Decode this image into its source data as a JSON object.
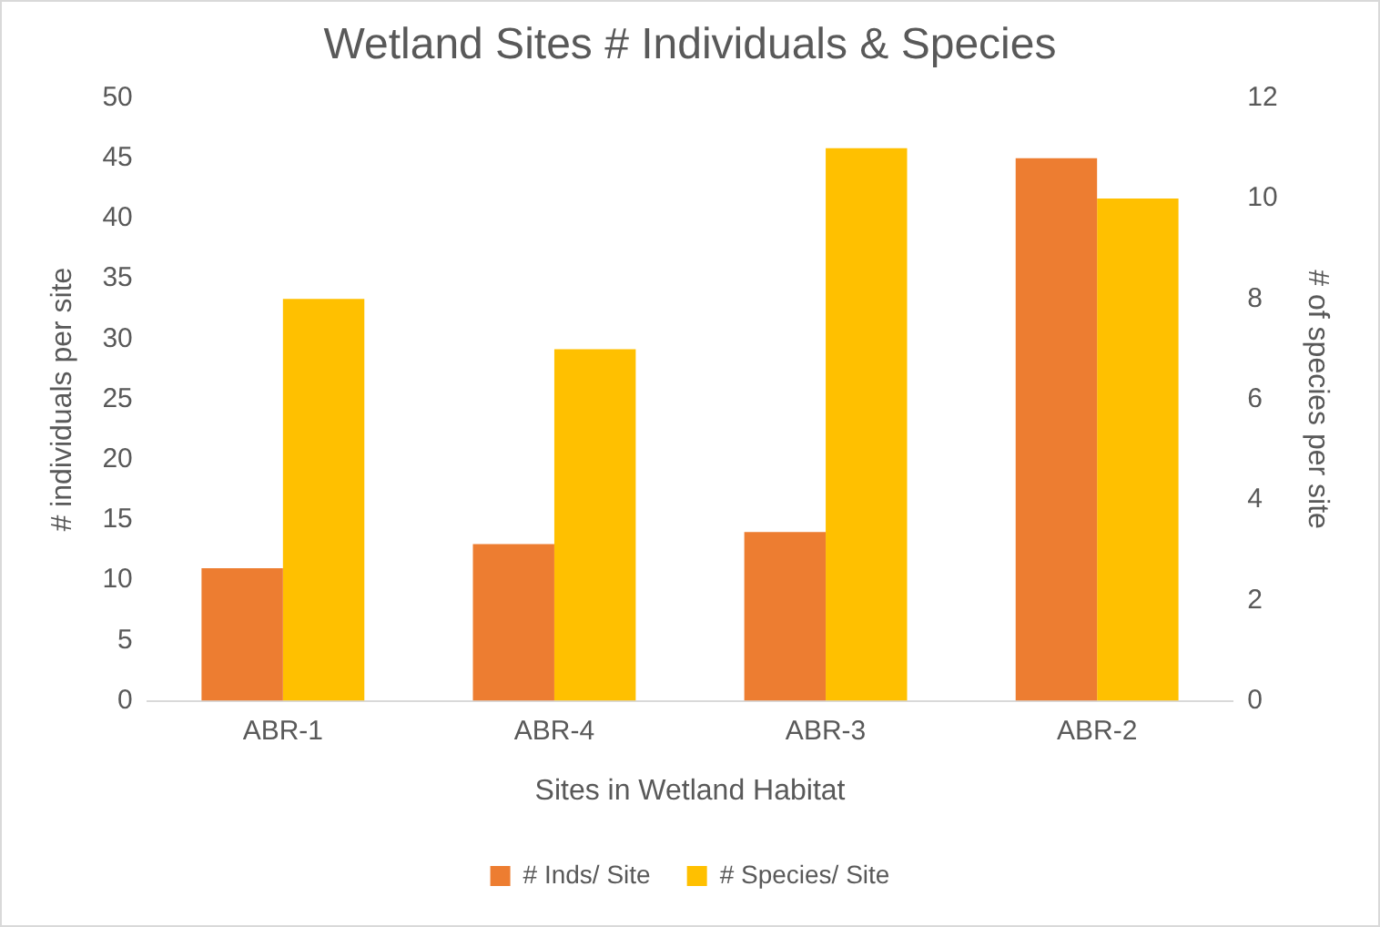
{
  "chart_data": {
    "type": "bar",
    "title": "Wetland Sites # Individuals & Species",
    "xlabel": "Sites in Wetland Habitat",
    "ylabel": "# individuals per site",
    "y2label": "# of species per site",
    "categories": [
      "ABR-1",
      "ABR-4",
      "ABR-3",
      "ABR-2"
    ],
    "series": [
      {
        "name": "# Inds/ Site",
        "color": "#ed7d31",
        "values": [
          11,
          13,
          14,
          45
        ]
      },
      {
        "name": "# Species/ Site",
        "color": "#ffc000",
        "values": [
          8,
          7,
          11,
          10
        ],
        "axis": "y2"
      }
    ],
    "ylim": [
      0,
      50
    ],
    "yticks": [
      0,
      5,
      10,
      15,
      20,
      25,
      30,
      35,
      40,
      45,
      50
    ],
    "y2lim": [
      0,
      12
    ],
    "y2ticks": [
      0,
      2,
      4,
      6,
      8,
      10,
      12
    ],
    "grid": false,
    "legend": "bottom"
  }
}
